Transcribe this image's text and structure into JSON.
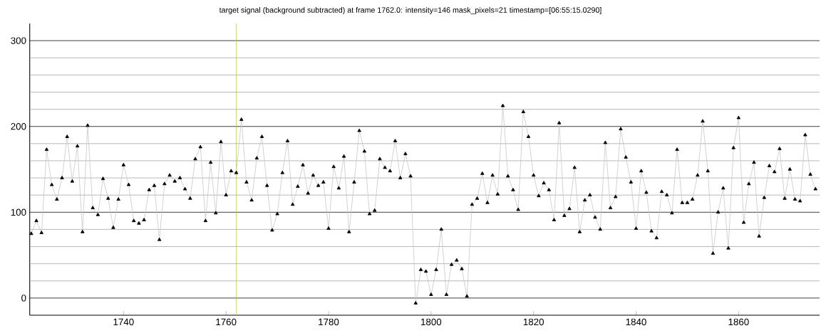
{
  "chart_data": {
    "type": "line",
    "title": "target signal (background subtracted) at frame 1762.0: intensity=146 mask_pixels=21 timestamp=[06:55:15.0290]",
    "x": [
      1722,
      1723,
      1724,
      1725,
      1726,
      1727,
      1728,
      1729,
      1730,
      1731,
      1732,
      1733,
      1734,
      1735,
      1736,
      1737,
      1738,
      1739,
      1740,
      1741,
      1742,
      1743,
      1744,
      1745,
      1746,
      1747,
      1748,
      1749,
      1750,
      1751,
      1752,
      1753,
      1754,
      1755,
      1756,
      1757,
      1758,
      1759,
      1760,
      1761,
      1762,
      1763,
      1764,
      1765,
      1766,
      1767,
      1768,
      1769,
      1770,
      1771,
      1772,
      1773,
      1774,
      1775,
      1776,
      1777,
      1778,
      1779,
      1780,
      1781,
      1782,
      1783,
      1784,
      1785,
      1786,
      1787,
      1788,
      1789,
      1790,
      1791,
      1792,
      1793,
      1794,
      1795,
      1796,
      1797,
      1798,
      1799,
      1800,
      1801,
      1802,
      1803,
      1804,
      1805,
      1806,
      1807,
      1808,
      1809,
      1810,
      1811,
      1812,
      1813,
      1814,
      1815,
      1816,
      1817,
      1818,
      1819,
      1820,
      1821,
      1822,
      1823,
      1824,
      1825,
      1826,
      1827,
      1828,
      1829,
      1830,
      1831,
      1832,
      1833,
      1834,
      1835,
      1836,
      1837,
      1838,
      1839,
      1840,
      1841,
      1842,
      1843,
      1844,
      1845,
      1846,
      1847,
      1848,
      1849,
      1850,
      1851,
      1852,
      1853,
      1854,
      1855,
      1856,
      1857,
      1858,
      1859,
      1860,
      1861,
      1862,
      1863,
      1864,
      1865,
      1866,
      1867,
      1868,
      1869,
      1870,
      1871,
      1872,
      1873,
      1874,
      1875
    ],
    "series": [
      {
        "color": "#000000",
        "values": [
          75,
          90,
          76,
          173,
          132,
          115,
          140,
          188,
          136,
          177,
          77,
          201,
          105,
          97,
          139,
          116,
          82,
          115,
          155,
          132,
          90,
          87,
          91,
          126,
          131,
          68,
          133,
          143,
          136,
          140,
          127,
          116,
          162,
          176,
          90,
          158,
          99,
          182,
          120,
          148,
          146,
          208,
          135,
          114,
          163,
          188,
          131,
          79,
          98,
          146,
          183,
          109,
          130,
          155,
          122,
          143,
          131,
          135,
          81,
          153,
          128,
          165,
          77,
          135,
          195,
          171,
          98,
          102,
          162,
          152,
          148,
          183,
          140,
          168,
          142,
          -6,
          33,
          31,
          4,
          33,
          80,
          4,
          39,
          44,
          34,
          2,
          109,
          116,
          145,
          111,
          143,
          121,
          224,
          142,
          126,
          103,
          217,
          188,
          143,
          119,
          134,
          126,
          91,
          204,
          96,
          104,
          152,
          77,
          114,
          120,
          94,
          80,
          181,
          105,
          118,
          197,
          164,
          135,
          81,
          148,
          123,
          78,
          70,
          124,
          120,
          99,
          173,
          111,
          111,
          115,
          143,
          206,
          148,
          52,
          100,
          128,
          58,
          175,
          210,
          88,
          133,
          158,
          72,
          117,
          154,
          147,
          174,
          116,
          150,
          115,
          113,
          190,
          144,
          127
        ]
      }
    ],
    "marker": "triangle",
    "xlim": [
      1721.7,
      1875.8
    ],
    "ylim": [
      -20,
      320
    ],
    "xticks": [
      1740,
      1760,
      1780,
      1800,
      1820,
      1840,
      1860
    ],
    "yticks": [
      0,
      {
        "value": 20,
        "label": null
      },
      {
        "value": 40,
        "label": null
      },
      {
        "value": 60,
        "label": null
      },
      {
        "value": 80,
        "label": null
      },
      100,
      {
        "value": 120,
        "label": null
      },
      {
        "value": 140,
        "label": null
      },
      {
        "value": 160,
        "label": null
      },
      {
        "value": 180,
        "label": null
      },
      200,
      {
        "value": 220,
        "label": null
      },
      {
        "value": 240,
        "label": null
      },
      {
        "value": 260,
        "label": null
      },
      {
        "value": 280,
        "label": null
      },
      300
    ],
    "grid": "y",
    "ref_lines": [
      {
        "axis": "x",
        "value": 1762,
        "color": "#b8c94a"
      }
    ]
  }
}
